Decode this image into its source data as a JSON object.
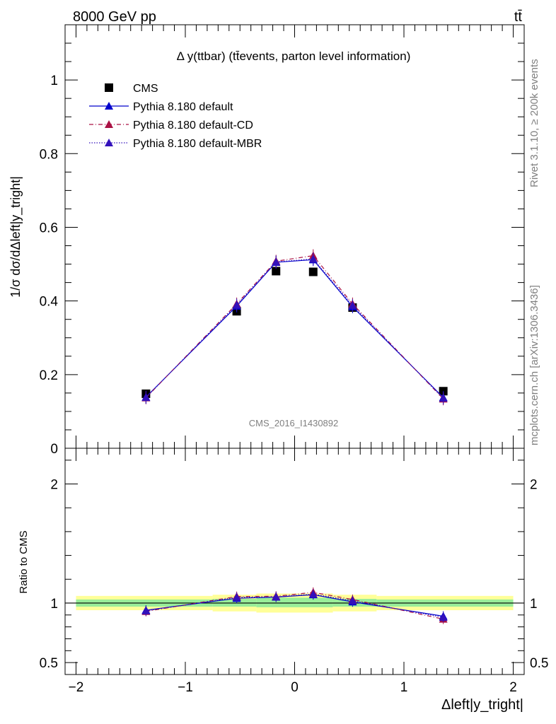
{
  "header": {
    "left": "8000 GeV pp",
    "right": "tt̄"
  },
  "side_text": {
    "rivet": "Rivet 3.1.10, ≥ 200k events",
    "mcplots": "mcplots.cern.ch [arXiv:1306.3436]"
  },
  "chart_data": [
    {
      "type": "scatter",
      "title": "Δ y(ttbar) (tt̄events, parton level information)",
      "watermark": "CMS_2016_I1430892",
      "ylabel": "1/σ dσ/dΔleft|y_tright|",
      "xlabel": "Δleft|y_tright|",
      "xlim": [
        -2.1,
        2.1
      ],
      "ylim": [
        0,
        1.15
      ],
      "xticks": [
        -2,
        -1,
        0,
        1,
        2
      ],
      "xtick_labels": [
        "−2",
        "−1",
        "0",
        "1",
        "2"
      ],
      "yticks": [
        0,
        0.2,
        0.4,
        0.6,
        0.8,
        1.0
      ],
      "ytick_labels": [
        "0",
        "0.2",
        "0.4",
        "0.6",
        "0.8",
        "1"
      ],
      "legend_position": "top-left",
      "x": [
        -1.36,
        -0.53,
        -0.17,
        0.17,
        0.53,
        1.36
      ],
      "series": [
        {
          "name": "CMS",
          "color": "#000000",
          "marker": "square",
          "values": [
            0.148,
            0.372,
            0.481,
            0.479,
            0.382,
            0.155
          ]
        },
        {
          "name": "Pythia 8.180 default",
          "color": "#0000cc",
          "marker": "triangle",
          "line": "solid",
          "values": [
            0.139,
            0.386,
            0.505,
            0.512,
            0.384,
            0.138
          ]
        },
        {
          "name": "Pythia 8.180 default-CD",
          "color": "#aa1144",
          "marker": "triangle",
          "line": "dashdot",
          "values": [
            0.137,
            0.392,
            0.508,
            0.523,
            0.392,
            0.134
          ]
        },
        {
          "name": "Pythia 8.180 default-MBR",
          "color": "#3311bb",
          "marker": "triangle",
          "line": "dotted",
          "values": [
            0.138,
            0.389,
            0.506,
            0.514,
            0.388,
            0.136
          ]
        }
      ]
    },
    {
      "type": "scatter",
      "ylabel": "Ratio to CMS",
      "xlabel": "Δleft|y_tright|",
      "xlim": [
        -2.1,
        2.1
      ],
      "ylim": [
        0.4,
        2.3
      ],
      "yticks": [
        0.5,
        1,
        2
      ],
      "ytick_labels": [
        "0.5",
        "1",
        "2"
      ],
      "bands": {
        "x_edges": [
          -2.0,
          -0.75,
          -0.35,
          0.0,
          0.35,
          0.75,
          2.0
        ],
        "inner": [
          [
            0.97,
            1.03
          ],
          [
            0.97,
            1.035
          ],
          [
            0.965,
            1.045
          ],
          [
            0.965,
            1.045
          ],
          [
            0.97,
            1.035
          ],
          [
            0.97,
            1.03
          ]
        ],
        "outer": [
          [
            0.94,
            1.06
          ],
          [
            0.93,
            1.07
          ],
          [
            0.92,
            1.08
          ],
          [
            0.92,
            1.08
          ],
          [
            0.93,
            1.07
          ],
          [
            0.94,
            1.06
          ]
        ]
      },
      "x": [
        -1.36,
        -0.53,
        -0.17,
        0.17,
        0.53,
        1.36
      ],
      "series": [
        {
          "name": "Pythia 8.180 default",
          "color": "#0000cc",
          "line": "solid",
          "values": [
            0.94,
            1.04,
            1.05,
            1.07,
            1.01,
            0.89
          ]
        },
        {
          "name": "Pythia 8.180 default-CD",
          "color": "#aa1144",
          "line": "dashdot",
          "values": [
            0.93,
            1.055,
            1.057,
            1.09,
            1.03,
            0.865
          ]
        },
        {
          "name": "Pythia 8.180 default-MBR",
          "color": "#3311bb",
          "line": "dotted",
          "values": [
            0.935,
            1.048,
            1.052,
            1.075,
            1.02,
            0.88
          ]
        }
      ]
    }
  ]
}
